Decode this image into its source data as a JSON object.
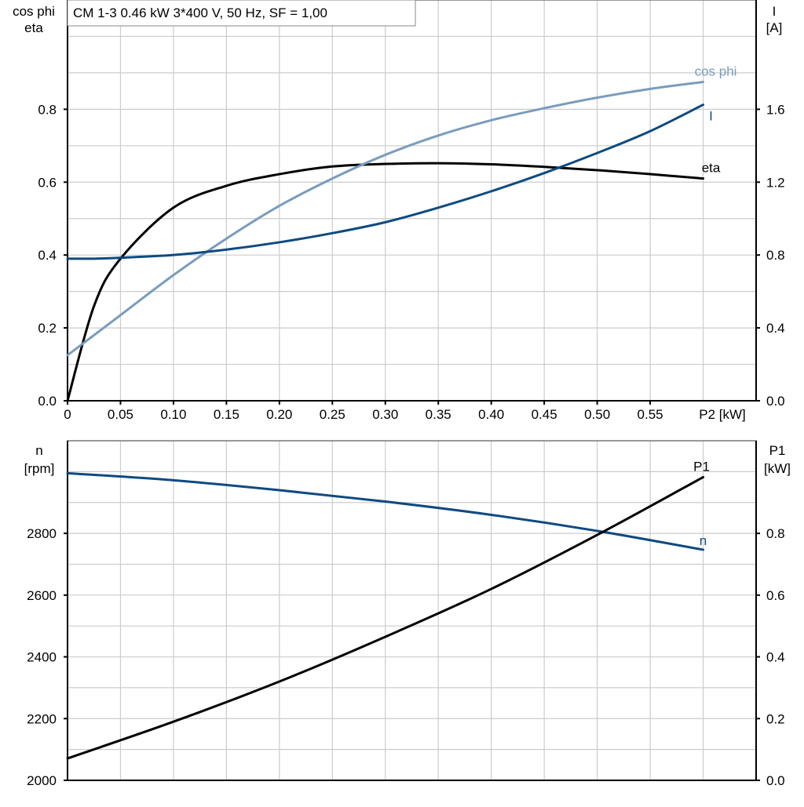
{
  "title": "CM 1-3   0.46 kW   3*400 V, 50 Hz, SF = 1,00",
  "colors": {
    "eta": "#000000",
    "cos_phi": "#7a9cbd",
    "I": "#0e4a80",
    "n": "#0e4a80",
    "P1": "#000000",
    "grid": "#cccccc"
  },
  "chart_data": [
    {
      "type": "line",
      "xlabel": "P2 [kW]",
      "ylabel_left": [
        "cos phi",
        "eta"
      ],
      "ylabel_right": [
        "I",
        "[A]"
      ],
      "xlim": [
        0,
        0.65
      ],
      "ylim_left": [
        0,
        1.1
      ],
      "ylim_right": [
        0,
        2.2
      ],
      "grid": true,
      "x_ticks": [
        "0",
        "0.05",
        "0.10",
        "0.15",
        "0.20",
        "0.25",
        "0.30",
        "0.35",
        "0.40",
        "0.45",
        "0.50",
        "0.55"
      ],
      "y_ticks_left": [
        "0.0",
        "0.2",
        "0.4",
        "0.6",
        "0.8"
      ],
      "y_ticks_right": [
        "0.0",
        "0.4",
        "0.8",
        "1.2",
        "1.6"
      ],
      "x": [
        0,
        0.025,
        0.05,
        0.1,
        0.15,
        0.2,
        0.25,
        0.3,
        0.35,
        0.4,
        0.45,
        0.5,
        0.55,
        0.6
      ],
      "series": [
        {
          "name": "eta",
          "axis": "left",
          "values": [
            0,
            0.26,
            0.39,
            0.53,
            0.59,
            0.622,
            0.643,
            0.65,
            0.652,
            0.649,
            0.642,
            0.633,
            0.622,
            0.61
          ]
        },
        {
          "name": "cos phi",
          "axis": "left",
          "values": [
            0.125,
            0.18,
            0.235,
            0.345,
            0.445,
            0.535,
            0.61,
            0.675,
            0.728,
            0.77,
            0.803,
            0.832,
            0.856,
            0.875
          ]
        },
        {
          "name": "I",
          "axis": "right",
          "values": [
            0.78,
            0.78,
            0.785,
            0.8,
            0.83,
            0.87,
            0.92,
            0.98,
            1.06,
            1.15,
            1.25,
            1.36,
            1.48,
            1.625
          ]
        }
      ]
    },
    {
      "type": "line",
      "ylabel_left": [
        "n",
        "[rpm]"
      ],
      "ylabel_right": [
        "P1",
        "[kW]"
      ],
      "xlim": [
        0,
        0.65
      ],
      "ylim_left": [
        2000,
        3100
      ],
      "ylim_right": [
        0,
        1.1
      ],
      "grid": true,
      "y_ticks_left": [
        "2000",
        "2200",
        "2400",
        "2600",
        "2800"
      ],
      "y_ticks_right": [
        "0.0",
        "0.2",
        "0.4",
        "0.6",
        "0.8"
      ],
      "x": [
        0,
        0.1,
        0.2,
        0.3,
        0.4,
        0.5,
        0.6
      ],
      "series": [
        {
          "name": "n",
          "axis": "left",
          "values": [
            2995,
            2972,
            2940,
            2903,
            2860,
            2808,
            2747
          ]
        },
        {
          "name": "P1",
          "axis": "right",
          "values": [
            0.071,
            0.19,
            0.32,
            0.465,
            0.62,
            0.795,
            0.982
          ]
        }
      ]
    }
  ]
}
